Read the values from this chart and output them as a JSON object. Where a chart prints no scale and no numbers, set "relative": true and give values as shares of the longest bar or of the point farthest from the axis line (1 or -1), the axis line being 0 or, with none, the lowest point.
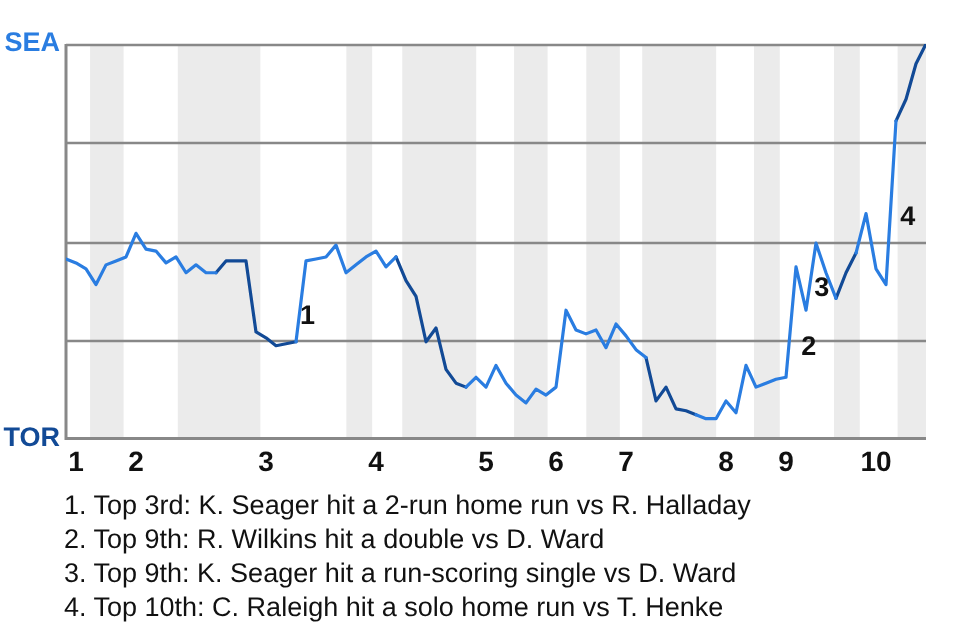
{
  "chart_data": {
    "type": "line",
    "relative": true,
    "categories": [
      null,
      "1",
      null,
      null,
      null,
      null,
      null,
      "2",
      null,
      null,
      null,
      null,
      null,
      null,
      null,
      null,
      null,
      null,
      null,
      null,
      "3",
      null,
      null,
      null,
      null,
      null,
      null,
      null,
      null,
      null,
      null,
      "4",
      null,
      null,
      null,
      null,
      null,
      null,
      null,
      null,
      null,
      null,
      "5",
      null,
      null,
      null,
      null,
      null,
      null,
      "6",
      null,
      null,
      null,
      null,
      null,
      null,
      "7",
      null,
      null,
      null,
      null,
      null,
      null,
      null,
      null,
      null,
      "8",
      null,
      null,
      null,
      null,
      null,
      "9",
      null,
      null,
      null,
      null,
      null,
      null,
      null,
      null,
      "10",
      null,
      null,
      null,
      null,
      null
    ],
    "series": [
      {
        "color": "#2a7de1",
        "values": [
          0.455,
          0.445,
          0.43,
          0.39,
          0.44,
          0.45,
          0.46,
          0.52,
          0.48,
          0.475,
          0.445,
          0.46,
          0.42,
          0.44,
          0.42,
          0.42,
          null,
          null,
          null,
          null,
          null,
          null,
          null,
          0.245,
          0.45,
          0.455,
          0.46,
          0.49,
          0.42,
          0.44,
          0.46,
          0.475,
          0.435,
          0.46,
          null,
          null,
          null,
          null,
          null,
          null,
          0.13,
          0.155,
          0.13,
          0.185,
          0.14,
          0.11,
          0.09,
          0.125,
          0.11,
          0.13,
          0.325,
          0.275,
          0.265,
          0.275,
          0.23,
          0.29,
          0.26,
          0.225,
          0.205,
          null,
          null,
          null,
          null,
          0.06,
          0.05,
          0.05,
          0.095,
          0.065,
          0.185,
          0.13,
          0.14,
          0.15,
          0.155,
          0.435,
          0.325,
          0.495,
          0.42,
          0.355,
          null,
          0.47,
          0.57,
          0.43,
          0.39,
          0.805,
          null,
          null,
          null
        ]
      },
      {
        "color": "#124a96",
        "values": [
          null,
          null,
          null,
          null,
          null,
          null,
          null,
          null,
          null,
          null,
          null,
          null,
          null,
          null,
          null,
          0.42,
          0.45,
          0.45,
          0.45,
          0.27,
          0.255,
          0.235,
          0.24,
          0.245,
          null,
          null,
          null,
          null,
          null,
          null,
          null,
          null,
          null,
          0.46,
          0.4,
          0.36,
          0.245,
          0.28,
          0.175,
          0.14,
          0.13,
          null,
          null,
          null,
          null,
          null,
          null,
          null,
          null,
          null,
          null,
          null,
          null,
          null,
          null,
          null,
          null,
          null,
          0.205,
          0.095,
          0.13,
          0.075,
          0.07,
          0.06,
          null,
          null,
          null,
          null,
          null,
          null,
          null,
          null,
          null,
          null,
          null,
          null,
          null,
          0.355,
          0.42,
          0.47,
          null,
          null,
          null,
          0.805,
          0.86,
          0.95,
          1.0
        ]
      }
    ],
    "grid": "y",
    "marker": "none",
    "annotations": [
      "SEA",
      "TOR",
      "1",
      "2",
      "3",
      "4",
      "1. Top 3rd: K. Seager hit a 2-run home run vs R. Halladay",
      "2. Top 9th: R. Wilkins hit a double vs D. Ward",
      "3. Top 9th: K. Seager hit a run-scoring single vs D. Ward",
      "4. Top 10th: C. Raleigh hit a solo home run vs T. Henke"
    ]
  }
}
